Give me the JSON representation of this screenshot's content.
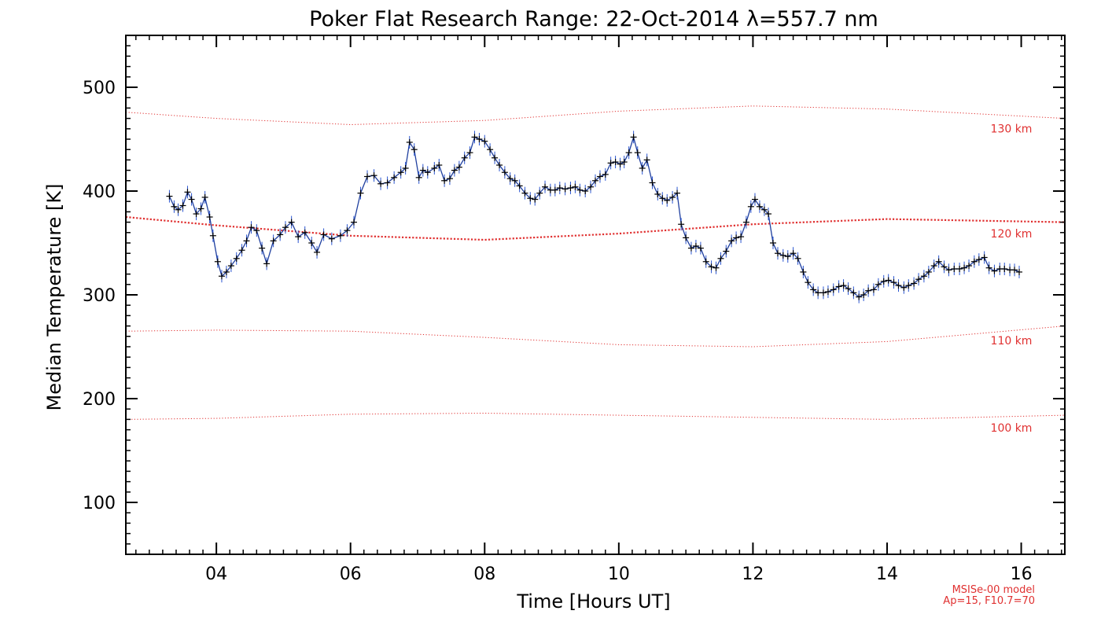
{
  "chart_data": {
    "type": "line",
    "title": "Poker Flat Research Range: 22-Oct-2014 λ=557.7 nm",
    "xlabel": "Time [Hours UT]",
    "ylabel": "Median Temperature [K]",
    "xlim": [
      2.65,
      16.65
    ],
    "ylim": [
      50,
      550
    ],
    "x_ticks": [
      4,
      6,
      8,
      10,
      12,
      14,
      16
    ],
    "x_tick_labels": [
      "04",
      "06",
      "08",
      "10",
      "12",
      "14",
      "16"
    ],
    "y_ticks": [
      100,
      200,
      300,
      400,
      500
    ],
    "y_tick_labels": [
      "100",
      "200",
      "300",
      "400",
      "500"
    ],
    "grid": false,
    "series": [
      {
        "color": "#1f3f9f",
        "marker": "+",
        "points": [
          [
            3.3,
            395
          ],
          [
            3.37,
            385
          ],
          [
            3.43,
            382
          ],
          [
            3.5,
            386
          ],
          [
            3.57,
            399
          ],
          [
            3.63,
            392
          ],
          [
            3.7,
            378
          ],
          [
            3.77,
            383
          ],
          [
            3.83,
            394
          ],
          [
            3.9,
            375
          ],
          [
            3.95,
            357
          ],
          [
            4.02,
            332
          ],
          [
            4.08,
            318
          ],
          [
            4.15,
            322
          ],
          [
            4.22,
            328
          ],
          [
            4.3,
            335
          ],
          [
            4.38,
            343
          ],
          [
            4.45,
            352
          ],
          [
            4.52,
            365
          ],
          [
            4.6,
            362
          ],
          [
            4.68,
            345
          ],
          [
            4.75,
            330
          ],
          [
            4.85,
            352
          ],
          [
            4.95,
            358
          ],
          [
            5.03,
            365
          ],
          [
            5.12,
            370
          ],
          [
            5.22,
            356
          ],
          [
            5.32,
            360
          ],
          [
            5.42,
            350
          ],
          [
            5.5,
            341
          ],
          [
            5.6,
            358
          ],
          [
            5.72,
            354
          ],
          [
            5.85,
            357
          ],
          [
            5.95,
            362
          ],
          [
            6.05,
            370
          ],
          [
            6.15,
            398
          ],
          [
            6.25,
            414
          ],
          [
            6.35,
            415
          ],
          [
            6.45,
            407
          ],
          [
            6.55,
            408
          ],
          [
            6.65,
            413
          ],
          [
            6.75,
            418
          ],
          [
            6.82,
            422
          ],
          [
            6.88,
            447
          ],
          [
            6.95,
            440
          ],
          [
            7.02,
            413
          ],
          [
            7.08,
            420
          ],
          [
            7.15,
            418
          ],
          [
            7.25,
            422
          ],
          [
            7.32,
            425
          ],
          [
            7.4,
            410
          ],
          [
            7.48,
            412
          ],
          [
            7.55,
            420
          ],
          [
            7.62,
            423
          ],
          [
            7.7,
            432
          ],
          [
            7.78,
            437
          ],
          [
            7.85,
            452
          ],
          [
            7.92,
            450
          ],
          [
            8.0,
            448
          ],
          [
            8.08,
            440
          ],
          [
            8.15,
            432
          ],
          [
            8.22,
            425
          ],
          [
            8.3,
            418
          ],
          [
            8.38,
            412
          ],
          [
            8.45,
            410
          ],
          [
            8.52,
            405
          ],
          [
            8.6,
            398
          ],
          [
            8.68,
            393
          ],
          [
            8.75,
            392
          ],
          [
            8.82,
            398
          ],
          [
            8.9,
            404
          ],
          [
            8.98,
            401
          ],
          [
            9.05,
            401
          ],
          [
            9.12,
            403
          ],
          [
            9.2,
            402
          ],
          [
            9.28,
            403
          ],
          [
            9.35,
            404
          ],
          [
            9.42,
            401
          ],
          [
            9.5,
            400
          ],
          [
            9.58,
            404
          ],
          [
            9.65,
            410
          ],
          [
            9.72,
            414
          ],
          [
            9.8,
            416
          ],
          [
            9.88,
            427
          ],
          [
            9.95,
            428
          ],
          [
            10.02,
            426
          ],
          [
            10.08,
            428
          ],
          [
            10.15,
            437
          ],
          [
            10.22,
            452
          ],
          [
            10.28,
            437
          ],
          [
            10.35,
            422
          ],
          [
            10.42,
            430
          ],
          [
            10.5,
            408
          ],
          [
            10.58,
            397
          ],
          [
            10.65,
            393
          ],
          [
            10.72,
            391
          ],
          [
            10.8,
            394
          ],
          [
            10.87,
            398
          ],
          [
            10.93,
            368
          ],
          [
            11.0,
            355
          ],
          [
            11.08,
            345
          ],
          [
            11.15,
            347
          ],
          [
            11.22,
            345
          ],
          [
            11.3,
            332
          ],
          [
            11.38,
            327
          ],
          [
            11.45,
            326
          ],
          [
            11.52,
            335
          ],
          [
            11.6,
            342
          ],
          [
            11.68,
            352
          ],
          [
            11.75,
            355
          ],
          [
            11.82,
            356
          ],
          [
            11.9,
            370
          ],
          [
            11.97,
            385
          ],
          [
            12.03,
            392
          ],
          [
            12.1,
            385
          ],
          [
            12.17,
            382
          ],
          [
            12.23,
            378
          ],
          [
            12.3,
            350
          ],
          [
            12.37,
            340
          ],
          [
            12.45,
            338
          ],
          [
            12.52,
            337
          ],
          [
            12.6,
            340
          ],
          [
            12.67,
            335
          ],
          [
            12.75,
            322
          ],
          [
            12.82,
            312
          ],
          [
            12.9,
            305
          ],
          [
            12.97,
            302
          ],
          [
            13.05,
            302
          ],
          [
            13.12,
            303
          ],
          [
            13.2,
            305
          ],
          [
            13.28,
            308
          ],
          [
            13.35,
            309
          ],
          [
            13.42,
            306
          ],
          [
            13.5,
            302
          ],
          [
            13.58,
            298
          ],
          [
            13.65,
            300
          ],
          [
            13.72,
            304
          ],
          [
            13.8,
            305
          ],
          [
            13.87,
            310
          ],
          [
            13.95,
            313
          ],
          [
            14.02,
            314
          ],
          [
            14.1,
            312
          ],
          [
            14.17,
            309
          ],
          [
            14.25,
            307
          ],
          [
            14.32,
            309
          ],
          [
            14.4,
            311
          ],
          [
            14.47,
            315
          ],
          [
            14.55,
            318
          ],
          [
            14.62,
            322
          ],
          [
            14.7,
            328
          ],
          [
            14.77,
            332
          ],
          [
            14.85,
            327
          ],
          [
            14.92,
            324
          ],
          [
            15.0,
            325
          ],
          [
            15.08,
            325
          ],
          [
            15.15,
            326
          ],
          [
            15.22,
            328
          ],
          [
            15.3,
            332
          ],
          [
            15.37,
            334
          ],
          [
            15.45,
            336
          ],
          [
            15.52,
            326
          ],
          [
            15.6,
            323
          ],
          [
            15.68,
            325
          ],
          [
            15.75,
            325
          ],
          [
            15.83,
            324
          ],
          [
            15.9,
            324
          ],
          [
            15.97,
            322
          ]
        ]
      }
    ],
    "model_lines": [
      {
        "name": "130 km",
        "color": "#e03030",
        "style": "fine-dotted",
        "points": [
          [
            2.65,
            476
          ],
          [
            4.0,
            470
          ],
          [
            6.0,
            464
          ],
          [
            8.0,
            468
          ],
          [
            10.0,
            477
          ],
          [
            12.0,
            482
          ],
          [
            14.0,
            479
          ],
          [
            16.65,
            470
          ]
        ]
      },
      {
        "name": "120 km",
        "color": "#e03030",
        "style": "bold-dotted",
        "points": [
          [
            2.65,
            375
          ],
          [
            4.0,
            367
          ],
          [
            6.0,
            357
          ],
          [
            8.0,
            353
          ],
          [
            10.0,
            359
          ],
          [
            12.0,
            368
          ],
          [
            14.0,
            373
          ],
          [
            16.65,
            370
          ]
        ]
      },
      {
        "name": "110 km",
        "color": "#e03030",
        "style": "fine-dotted",
        "points": [
          [
            2.65,
            265
          ],
          [
            4.0,
            266
          ],
          [
            6.0,
            265
          ],
          [
            8.0,
            259
          ],
          [
            10.0,
            252
          ],
          [
            12.0,
            250
          ],
          [
            14.0,
            255
          ],
          [
            16.65,
            270
          ]
        ]
      },
      {
        "name": "100 km",
        "color": "#e03030",
        "style": "fine-dotted",
        "points": [
          [
            2.65,
            180
          ],
          [
            4.0,
            181
          ],
          [
            6.0,
            185
          ],
          [
            8.0,
            186
          ],
          [
            10.0,
            184
          ],
          [
            12.0,
            182
          ],
          [
            14.0,
            180
          ],
          [
            16.65,
            184
          ]
        ]
      }
    ],
    "annotations": [
      "MSISe-00 model",
      "Ap=15, F10.7=70"
    ]
  }
}
